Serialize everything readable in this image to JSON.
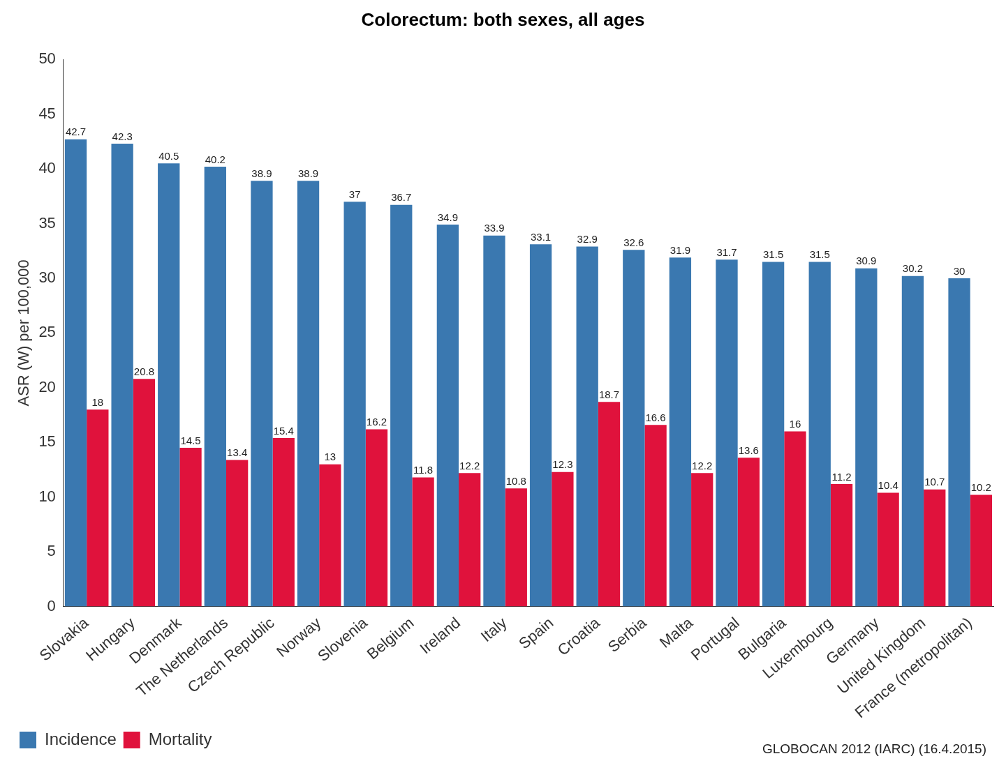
{
  "chart_data": {
    "type": "bar",
    "title": "Colorectum: both sexes, all ages",
    "ylabel": "ASR (W) per 100,000",
    "categories": [
      "Slovakia",
      "Hungary",
      "Denmark",
      "The Netherlands",
      "Czech Republic",
      "Norway",
      "Slovenia",
      "Belgium",
      "Ireland",
      "Italy",
      "Spain",
      "Croatia",
      "Serbia",
      "Malta",
      "Portugal",
      "Bulgaria",
      "Luxembourg",
      "Germany",
      "United Kingdom",
      "France (metropolitan)"
    ],
    "series": [
      {
        "name": "Incidence",
        "color": "#3a78b0",
        "values": [
          42.7,
          42.3,
          40.5,
          40.2,
          38.9,
          38.9,
          37,
          36.7,
          34.9,
          33.9,
          33.1,
          32.9,
          32.6,
          31.9,
          31.7,
          31.5,
          31.5,
          30.9,
          30.2,
          30
        ]
      },
      {
        "name": "Mortality",
        "color": "#e0123c",
        "values": [
          18,
          20.8,
          14.5,
          13.4,
          15.4,
          13,
          16.2,
          11.8,
          12.2,
          10.8,
          12.3,
          18.7,
          16.6,
          12.2,
          13.6,
          16,
          11.2,
          10.4,
          10.7,
          10.2
        ]
      }
    ],
    "ylim": [
      0,
      50
    ],
    "yticks": [
      0,
      5,
      10,
      15,
      20,
      25,
      30,
      35,
      40,
      45,
      50
    ],
    "grid": false,
    "legend": "bottom left",
    "data_labels": true,
    "annotations": [
      "GLOBOCAN 2012 (IARC) (16.4.2015)"
    ]
  }
}
